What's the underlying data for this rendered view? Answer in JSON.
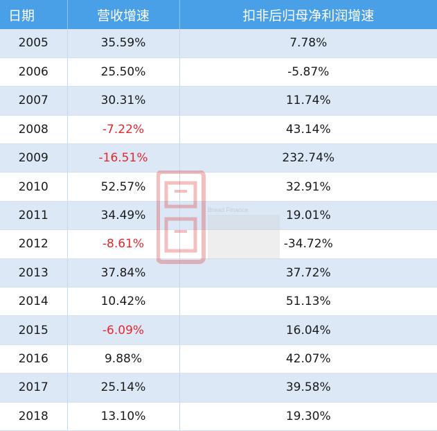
{
  "headers": [
    "日期",
    "营收增速",
    "扣非后归母净利润增速"
  ],
  "rows": [
    {
      "year": "2005",
      "revenue": "35.59%",
      "profit": "7.78%",
      "revenue_neg": false
    },
    {
      "year": "2006",
      "revenue": "25.50%",
      "profit": "-5.87%",
      "revenue_neg": false
    },
    {
      "year": "2007",
      "revenue": "30.31%",
      "profit": "11.74%",
      "revenue_neg": false
    },
    {
      "year": "2008",
      "revenue": "-7.22%",
      "profit": "43.14%",
      "revenue_neg": true
    },
    {
      "year": "2009",
      "revenue": "-16.51%",
      "profit": "232.74%",
      "revenue_neg": true
    },
    {
      "year": "2010",
      "revenue": "52.57%",
      "profit": "32.91%",
      "revenue_neg": false
    },
    {
      "year": "2011",
      "revenue": "34.49%",
      "profit": "19.01%",
      "revenue_neg": false
    },
    {
      "year": "2012",
      "revenue": "-8.61%",
      "profit": "-34.72%",
      "revenue_neg": true
    },
    {
      "year": "2013",
      "revenue": "37.84%",
      "profit": "37.72%",
      "revenue_neg": false
    },
    {
      "year": "2014",
      "revenue": "10.42%",
      "profit": "51.13%",
      "revenue_neg": false
    },
    {
      "year": "2015",
      "revenue": "-6.09%",
      "profit": "16.04%",
      "revenue_neg": true
    },
    {
      "year": "2016",
      "revenue": "9.88%",
      "profit": "42.07%",
      "revenue_neg": false
    },
    {
      "year": "2017",
      "revenue": "25.14%",
      "profit": "39.58%",
      "revenue_neg": false
    },
    {
      "year": "2018",
      "revenue": "13.10%",
      "profit": "19.30%",
      "revenue_neg": false
    }
  ],
  "watermark": {
    "text": "Bread Finance",
    "brand": "财经"
  },
  "colors": {
    "header_bg": "#4aa0e6",
    "stripe": "#dce8f6",
    "negative": "#e8262d"
  }
}
